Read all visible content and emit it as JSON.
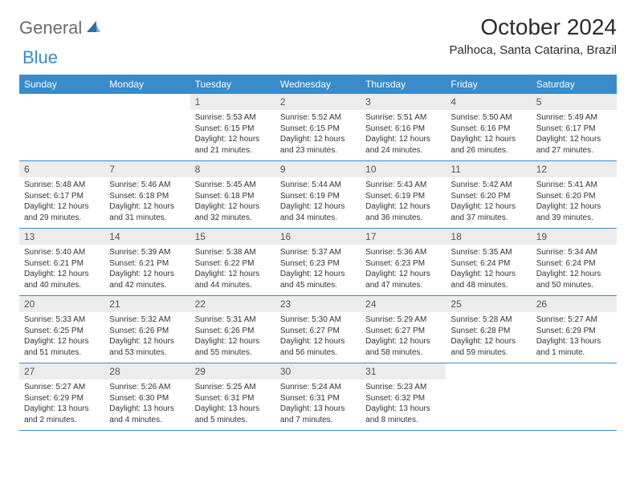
{
  "brand": {
    "part1": "General",
    "part2": "Blue"
  },
  "title": "October 2024",
  "location": "Palhoca, Santa Catarina, Brazil",
  "colors": {
    "header_blue": "#3a8bc9",
    "daynum_bg": "#ececec",
    "text_dark": "#2b2b2b",
    "text_body": "#333333",
    "logo_gray": "#6b6b6b"
  },
  "weekdays": [
    "Sunday",
    "Monday",
    "Tuesday",
    "Wednesday",
    "Thursday",
    "Friday",
    "Saturday"
  ],
  "weeks": [
    [
      null,
      null,
      {
        "n": "1",
        "sunrise": "Sunrise: 5:53 AM",
        "sunset": "Sunset: 6:15 PM",
        "day": "Daylight: 12 hours and 21 minutes."
      },
      {
        "n": "2",
        "sunrise": "Sunrise: 5:52 AM",
        "sunset": "Sunset: 6:15 PM",
        "day": "Daylight: 12 hours and 23 minutes."
      },
      {
        "n": "3",
        "sunrise": "Sunrise: 5:51 AM",
        "sunset": "Sunset: 6:16 PM",
        "day": "Daylight: 12 hours and 24 minutes."
      },
      {
        "n": "4",
        "sunrise": "Sunrise: 5:50 AM",
        "sunset": "Sunset: 6:16 PM",
        "day": "Daylight: 12 hours and 26 minutes."
      },
      {
        "n": "5",
        "sunrise": "Sunrise: 5:49 AM",
        "sunset": "Sunset: 6:17 PM",
        "day": "Daylight: 12 hours and 27 minutes."
      }
    ],
    [
      {
        "n": "6",
        "sunrise": "Sunrise: 5:48 AM",
        "sunset": "Sunset: 6:17 PM",
        "day": "Daylight: 12 hours and 29 minutes."
      },
      {
        "n": "7",
        "sunrise": "Sunrise: 5:46 AM",
        "sunset": "Sunset: 6:18 PM",
        "day": "Daylight: 12 hours and 31 minutes."
      },
      {
        "n": "8",
        "sunrise": "Sunrise: 5:45 AM",
        "sunset": "Sunset: 6:18 PM",
        "day": "Daylight: 12 hours and 32 minutes."
      },
      {
        "n": "9",
        "sunrise": "Sunrise: 5:44 AM",
        "sunset": "Sunset: 6:19 PM",
        "day": "Daylight: 12 hours and 34 minutes."
      },
      {
        "n": "10",
        "sunrise": "Sunrise: 5:43 AM",
        "sunset": "Sunset: 6:19 PM",
        "day": "Daylight: 12 hours and 36 minutes."
      },
      {
        "n": "11",
        "sunrise": "Sunrise: 5:42 AM",
        "sunset": "Sunset: 6:20 PM",
        "day": "Daylight: 12 hours and 37 minutes."
      },
      {
        "n": "12",
        "sunrise": "Sunrise: 5:41 AM",
        "sunset": "Sunset: 6:20 PM",
        "day": "Daylight: 12 hours and 39 minutes."
      }
    ],
    [
      {
        "n": "13",
        "sunrise": "Sunrise: 5:40 AM",
        "sunset": "Sunset: 6:21 PM",
        "day": "Daylight: 12 hours and 40 minutes."
      },
      {
        "n": "14",
        "sunrise": "Sunrise: 5:39 AM",
        "sunset": "Sunset: 6:21 PM",
        "day": "Daylight: 12 hours and 42 minutes."
      },
      {
        "n": "15",
        "sunrise": "Sunrise: 5:38 AM",
        "sunset": "Sunset: 6:22 PM",
        "day": "Daylight: 12 hours and 44 minutes."
      },
      {
        "n": "16",
        "sunrise": "Sunrise: 5:37 AM",
        "sunset": "Sunset: 6:23 PM",
        "day": "Daylight: 12 hours and 45 minutes."
      },
      {
        "n": "17",
        "sunrise": "Sunrise: 5:36 AM",
        "sunset": "Sunset: 6:23 PM",
        "day": "Daylight: 12 hours and 47 minutes."
      },
      {
        "n": "18",
        "sunrise": "Sunrise: 5:35 AM",
        "sunset": "Sunset: 6:24 PM",
        "day": "Daylight: 12 hours and 48 minutes."
      },
      {
        "n": "19",
        "sunrise": "Sunrise: 5:34 AM",
        "sunset": "Sunset: 6:24 PM",
        "day": "Daylight: 12 hours and 50 minutes."
      }
    ],
    [
      {
        "n": "20",
        "sunrise": "Sunrise: 5:33 AM",
        "sunset": "Sunset: 6:25 PM",
        "day": "Daylight: 12 hours and 51 minutes."
      },
      {
        "n": "21",
        "sunrise": "Sunrise: 5:32 AM",
        "sunset": "Sunset: 6:26 PM",
        "day": "Daylight: 12 hours and 53 minutes."
      },
      {
        "n": "22",
        "sunrise": "Sunrise: 5:31 AM",
        "sunset": "Sunset: 6:26 PM",
        "day": "Daylight: 12 hours and 55 minutes."
      },
      {
        "n": "23",
        "sunrise": "Sunrise: 5:30 AM",
        "sunset": "Sunset: 6:27 PM",
        "day": "Daylight: 12 hours and 56 minutes."
      },
      {
        "n": "24",
        "sunrise": "Sunrise: 5:29 AM",
        "sunset": "Sunset: 6:27 PM",
        "day": "Daylight: 12 hours and 58 minutes."
      },
      {
        "n": "25",
        "sunrise": "Sunrise: 5:28 AM",
        "sunset": "Sunset: 6:28 PM",
        "day": "Daylight: 12 hours and 59 minutes."
      },
      {
        "n": "26",
        "sunrise": "Sunrise: 5:27 AM",
        "sunset": "Sunset: 6:29 PM",
        "day": "Daylight: 13 hours and 1 minute."
      }
    ],
    [
      {
        "n": "27",
        "sunrise": "Sunrise: 5:27 AM",
        "sunset": "Sunset: 6:29 PM",
        "day": "Daylight: 13 hours and 2 minutes."
      },
      {
        "n": "28",
        "sunrise": "Sunrise: 5:26 AM",
        "sunset": "Sunset: 6:30 PM",
        "day": "Daylight: 13 hours and 4 minutes."
      },
      {
        "n": "29",
        "sunrise": "Sunrise: 5:25 AM",
        "sunset": "Sunset: 6:31 PM",
        "day": "Daylight: 13 hours and 5 minutes."
      },
      {
        "n": "30",
        "sunrise": "Sunrise: 5:24 AM",
        "sunset": "Sunset: 6:31 PM",
        "day": "Daylight: 13 hours and 7 minutes."
      },
      {
        "n": "31",
        "sunrise": "Sunrise: 5:23 AM",
        "sunset": "Sunset: 6:32 PM",
        "day": "Daylight: 13 hours and 8 minutes."
      },
      null,
      null
    ]
  ]
}
